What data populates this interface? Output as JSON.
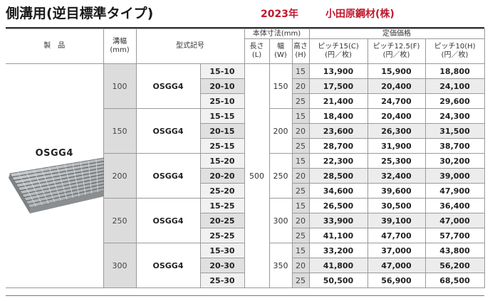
{
  "header": {
    "title": "側溝用(逆目標準タイプ)",
    "year": "2023年",
    "maker": "小田原鋼材(株)"
  },
  "columns": {
    "product": "製　品",
    "width": "溝幅",
    "width_unit": "(mm)",
    "model": "型式記号",
    "dims_group": "本体寸法(mm)",
    "length": "長さ",
    "length_unit": "(L)",
    "breadth": "幅",
    "breadth_unit": "(W)",
    "height": "高さ",
    "height_unit": "(H)",
    "price_group": "定価価格",
    "p15": "ピッチ15(C)",
    "p125": "ピッチ12.5(F)",
    "p10": "ピッチ10(H)",
    "price_unit": "(円／枚)"
  },
  "product_name": "OSGG4",
  "length_value": "500",
  "groups": [
    {
      "width": "100",
      "model": "OSGG4",
      "W": "150",
      "rows": [
        {
          "size": "15-10",
          "H": "15",
          "p15": "13,900",
          "p125": "15,900",
          "p10": "18,800"
        },
        {
          "size": "20-10",
          "H": "20",
          "p15": "17,500",
          "p125": "20,400",
          "p10": "24,100"
        },
        {
          "size": "25-10",
          "H": "25",
          "p15": "21,400",
          "p125": "24,700",
          "p10": "29,600"
        }
      ]
    },
    {
      "width": "150",
      "model": "OSGG4",
      "W": "200",
      "rows": [
        {
          "size": "15-15",
          "H": "15",
          "p15": "18,400",
          "p125": "20,400",
          "p10": "24,300"
        },
        {
          "size": "20-15",
          "H": "20",
          "p15": "23,600",
          "p125": "26,300",
          "p10": "31,500"
        },
        {
          "size": "25-15",
          "H": "25",
          "p15": "28,700",
          "p125": "31,900",
          "p10": "38,700"
        }
      ]
    },
    {
      "width": "200",
      "model": "OSGG4",
      "W": "250",
      "rows": [
        {
          "size": "15-20",
          "H": "15",
          "p15": "22,300",
          "p125": "25,300",
          "p10": "30,200"
        },
        {
          "size": "20-20",
          "H": "20",
          "p15": "28,500",
          "p125": "32,400",
          "p10": "39,000"
        },
        {
          "size": "25-20",
          "H": "25",
          "p15": "34,600",
          "p125": "39,600",
          "p10": "47,900"
        }
      ]
    },
    {
      "width": "250",
      "model": "OSGG4",
      "W": "300",
      "rows": [
        {
          "size": "15-25",
          "H": "15",
          "p15": "26,500",
          "p125": "30,500",
          "p10": "36,400"
        },
        {
          "size": "20-25",
          "H": "20",
          "p15": "33,900",
          "p125": "39,100",
          "p10": "47,000"
        },
        {
          "size": "25-25",
          "H": "25",
          "p15": "41,100",
          "p125": "47,700",
          "p10": "57,700"
        }
      ]
    },
    {
      "width": "300",
      "model": "OSGG4",
      "W": "350",
      "rows": [
        {
          "size": "15-30",
          "H": "15",
          "p15": "33,200",
          "p125": "37,000",
          "p10": "43,800"
        },
        {
          "size": "20-30",
          "H": "20",
          "p15": "41,800",
          "p125": "47,000",
          "p10": "56,200"
        },
        {
          "size": "25-30",
          "H": "25",
          "p15": "50,500",
          "p125": "56,900",
          "p10": "68,500"
        }
      ]
    }
  ]
}
